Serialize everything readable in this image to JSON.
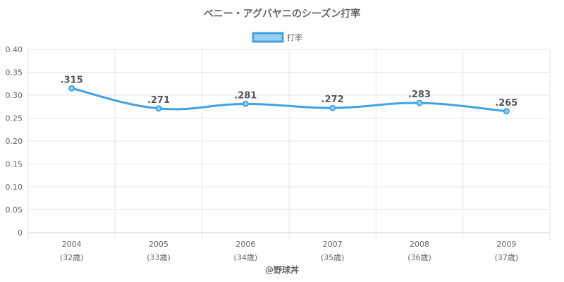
{
  "chart_data": {
    "type": "line",
    "title": "ベニー・アグバヤニのシーズン打率",
    "categories": [
      "2004",
      "2005",
      "2006",
      "2007",
      "2008",
      "2009"
    ],
    "category_sublabels": [
      "(32歳)",
      "(33歳)",
      "(34歳)",
      "(35歳)",
      "(36歳)",
      "(37歳)"
    ],
    "series": [
      {
        "name": "打率",
        "values": [
          0.315,
          0.271,
          0.281,
          0.272,
          0.283,
          0.265
        ],
        "data_labels": [
          ".315",
          ".271",
          ".281",
          ".272",
          ".283",
          ".265"
        ]
      }
    ],
    "y_ticks": [
      "0",
      "0.05",
      "0.10",
      "0.15",
      "0.20",
      "0.25",
      "0.30",
      "0.35",
      "0.40"
    ],
    "ylim": [
      0,
      0.4
    ],
    "grid": true,
    "legend_position": "top",
    "colors": {
      "line": "#3ea3e6",
      "legend_fill": "#9ccff0",
      "grid": "#e5e5e5",
      "axis": "#cccccc"
    }
  },
  "credit": "@野球丼"
}
